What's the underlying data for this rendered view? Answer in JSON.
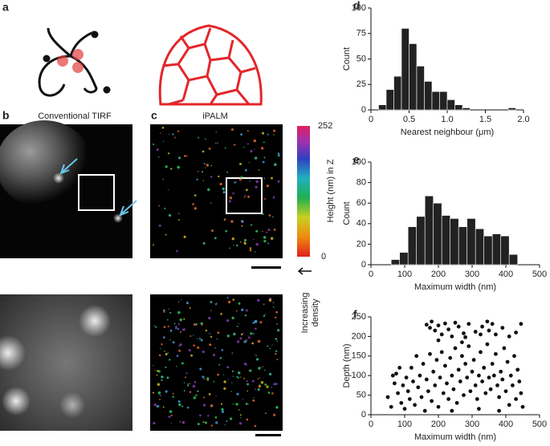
{
  "panel_labels": [
    "a",
    "b",
    "c",
    "d",
    "e",
    "f"
  ],
  "image_titles": {
    "tirf": "Conventional TIRF",
    "ipalm": "iPALM"
  },
  "colorbar": {
    "max": "252",
    "min": "0",
    "label": "Height (nm) in Z",
    "arrow_label": [
      "Increasing",
      "density"
    ]
  },
  "chart_data": [
    {
      "type": "histogram",
      "xlabel": "Nearest neighbour (μm)",
      "ylabel": "Count",
      "color": "#222222",
      "bins": [
        0.1,
        0.2,
        0.3,
        0.4,
        0.5,
        0.6,
        0.7,
        0.8,
        0.9,
        1.0,
        1.1,
        1.2,
        1.3,
        1.4,
        1.5,
        1.6,
        1.7,
        1.8,
        1.9
      ],
      "values": [
        5,
        20,
        33,
        80,
        65,
        43,
        28,
        18,
        18,
        10,
        5,
        2,
        0,
        0,
        0,
        0,
        0,
        2
      ],
      "xlim": [
        0,
        2
      ],
      "ylim": [
        0,
        100
      ],
      "xticks": [
        0,
        0.5,
        {
          "value": 1,
          "label": "1.0"
        },
        1.5,
        {
          "value": 2,
          "label": "2.0"
        }
      ],
      "yticks": [
        0,
        25,
        50,
        75,
        100
      ]
    },
    {
      "type": "histogram",
      "xlabel": "Maximum width (nm)",
      "ylabel": "Count",
      "color": "#222222",
      "bins": [
        60,
        85,
        110,
        135,
        160,
        185,
        210,
        235,
        260,
        285,
        310,
        335,
        360,
        385,
        410,
        435
      ],
      "values": [
        5,
        12,
        37,
        47,
        67,
        60,
        48,
        45,
        37,
        45,
        35,
        28,
        30,
        28,
        10
      ],
      "xlim": [
        0,
        500
      ],
      "ylim": [
        0,
        100
      ],
      "xticks": [
        0,
        100,
        200,
        300,
        400,
        500
      ],
      "yticks": [
        0,
        20,
        40,
        60,
        80,
        100
      ]
    },
    {
      "type": "scatter",
      "xlabel": "Maximum width (nm)",
      "ylabel": "Depth (nm)",
      "color": "#111111",
      "x": [
        165,
        175,
        180,
        190,
        200,
        210,
        220,
        230,
        240,
        250,
        260,
        275,
        290,
        310,
        330,
        345,
        350,
        360,
        370,
        390,
        410,
        430,
        445,
        325,
        280,
        50,
        60,
        70,
        75,
        80,
        90,
        95,
        100,
        105,
        110,
        115,
        120,
        125,
        130,
        135,
        140,
        145,
        150,
        155,
        160,
        165,
        170,
        175,
        180,
        185,
        190,
        195,
        200,
        205,
        210,
        215,
        220,
        225,
        230,
        235,
        240,
        245,
        250,
        255,
        260,
        265,
        270,
        275,
        280,
        285,
        290,
        295,
        300,
        305,
        310,
        315,
        320,
        325,
        330,
        335,
        340,
        345,
        350,
        355,
        360,
        365,
        370,
        375,
        380,
        385,
        390,
        395,
        400,
        405,
        410,
        415,
        420,
        425,
        430,
        435,
        440,
        445,
        450,
        65,
        85,
        200,
        270,
        240,
        320,
        380
      ],
      "y": [
        230,
        222,
        238,
        215,
        228,
        205,
        233,
        218,
        200,
        235,
        225,
        208,
        232,
        212,
        225,
        238,
        215,
        232,
        205,
        222,
        200,
        210,
        232,
        205,
        198,
        45,
        20,
        80,
        105,
        55,
        30,
        75,
        15,
        95,
        60,
        40,
        120,
        85,
        25,
        150,
        70,
        100,
        45,
        130,
        10,
        90,
        60,
        155,
        35,
        110,
        75,
        140,
        20,
        95,
        160,
        55,
        125,
        80,
        40,
        145,
        100,
        65,
        170,
        30,
        115,
        85,
        150,
        50,
        130,
        95,
        175,
        60,
        110,
        140,
        75,
        40,
        100,
        160,
        85,
        120,
        55,
        180,
        95,
        65,
        130,
        100,
        155,
        75,
        45,
        110,
        90,
        170,
        60,
        135,
        25,
        100,
        75,
        150,
        40,
        115,
        85,
        55,
        20,
        100,
        120,
        190,
        185,
        10,
        15,
        10
      ],
      "xlim": [
        0,
        500
      ],
      "ylim": [
        0,
        250
      ],
      "xticks": [
        0,
        100,
        200,
        300,
        400,
        500
      ],
      "yticks": [
        0,
        50,
        100,
        150,
        200,
        250
      ]
    }
  ]
}
